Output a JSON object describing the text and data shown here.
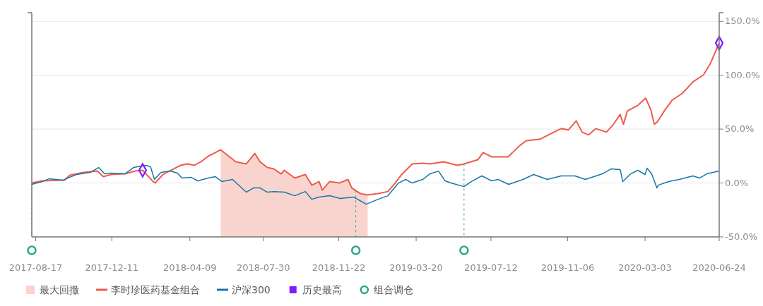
{
  "chart_data": {
    "type": "line",
    "xlim": [
      "2017-08-11",
      "2020-06-24"
    ],
    "xticks": [
      "2017-08-17",
      "2017-12-11",
      "2018-04-09",
      "2018-07-30",
      "2018-11-22",
      "2019-03-20",
      "2019-07-12",
      "2019-11-06",
      "2020-03-03",
      "2020-06-24"
    ],
    "ylim": [
      -50,
      158
    ],
    "yticks": [
      {
        "value": 150,
        "label": "150.0%"
      },
      {
        "value": 100,
        "label": "100.0%"
      },
      {
        "value": 50,
        "label": "50.0%"
      },
      {
        "value": 0,
        "label": "0.0%"
      },
      {
        "value": -50,
        "label": "-50.0%"
      }
    ],
    "grid": "y",
    "legend": "bottom",
    "series": [
      {
        "name": "最大回撤",
        "type": "area",
        "color": "#f9d4cf",
        "x": [
          "2018-05-26",
          "2018-05-26",
          "2018-06-18",
          "2018-07-04",
          "2018-07-17",
          "2018-07-25",
          "2018-08-05",
          "2018-08-15",
          "2018-08-26",
          "2018-08-31",
          "2018-09-16",
          "2018-10-02",
          "2018-10-12",
          "2018-10-23",
          "2018-10-28",
          "2018-11-08",
          "2018-11-23",
          "2018-12-06",
          "2018-12-12",
          "2018-12-25",
          "2019-01-05",
          "2019-01-05"
        ],
        "values": [
          -50,
          30.8,
          19.7,
          17.7,
          27.5,
          19.7,
          14.4,
          13.1,
          8.5,
          11.8,
          4.6,
          7.9,
          -2.0,
          1.3,
          -6.6,
          1.3,
          0,
          3.3,
          -4.6,
          -9.8,
          -11.1,
          -50
        ]
      },
      {
        "name": "李时珍医药基金组合",
        "color": "#f05b4a",
        "x": [
          "2017-08-11",
          "2017-08-27",
          "2017-09-30",
          "2017-10-08",
          "2017-10-29",
          "2017-11-19",
          "2017-11-28",
          "2017-12-10",
          "2017-12-31",
          "2018-01-16",
          "2018-01-27",
          "2018-02-12",
          "2018-02-15",
          "2018-02-27",
          "2018-03-15",
          "2018-03-26",
          "2018-04-05",
          "2018-04-16",
          "2018-04-26",
          "2018-05-07",
          "2018-05-18",
          "2018-05-26",
          "2018-06-18",
          "2018-07-04",
          "2018-07-17",
          "2018-07-25",
          "2018-08-05",
          "2018-08-15",
          "2018-08-26",
          "2018-08-31",
          "2018-09-16",
          "2018-10-02",
          "2018-10-12",
          "2018-10-23",
          "2018-10-28",
          "2018-11-08",
          "2018-11-23",
          "2018-12-06",
          "2018-12-12",
          "2018-12-25",
          "2019-01-05",
          "2019-01-21",
          "2019-02-05",
          "2019-02-16",
          "2019-02-26",
          "2019-03-14",
          "2019-03-30",
          "2019-04-10",
          "2019-05-01",
          "2019-05-22",
          "2019-06-01",
          "2019-06-22",
          "2019-06-30",
          "2019-07-13",
          "2019-07-23",
          "2019-08-07",
          "2019-08-25",
          "2019-09-04",
          "2019-09-25",
          "2019-10-16",
          "2019-10-27",
          "2019-11-07",
          "2019-11-19",
          "2019-11-28",
          "2019-12-08",
          "2019-12-19",
          "2020-01-04",
          "2020-01-14",
          "2020-01-25",
          "2020-01-30",
          "2020-02-05",
          "2020-02-21",
          "2020-03-04",
          "2020-03-12",
          "2020-03-17",
          "2020-03-22",
          "2020-04-02",
          "2020-04-13",
          "2020-04-29",
          "2020-05-15",
          "2020-05-31",
          "2020-06-10",
          "2020-06-24"
        ],
        "values": [
          0,
          2.0,
          2.6,
          7.2,
          9.8,
          11.1,
          5.9,
          7.9,
          8.5,
          11.1,
          11.8,
          1.3,
          0,
          7.9,
          13.1,
          16.4,
          17.7,
          16.4,
          19.7,
          24.9,
          28.2,
          30.8,
          19.7,
          17.7,
          27.5,
          19.7,
          14.4,
          13.1,
          8.5,
          11.8,
          4.6,
          7.9,
          -2.0,
          1.3,
          -6.6,
          1.3,
          0,
          3.3,
          -4.6,
          -9.8,
          -11.1,
          -9.8,
          -7.9,
          0,
          7.9,
          17.7,
          18.4,
          17.7,
          19.7,
          16.4,
          17.7,
          21.6,
          28.2,
          24.3,
          24.3,
          24.3,
          34.8,
          39.3,
          40.7,
          47.2,
          50.5,
          49.2,
          57.7,
          47.2,
          44.6,
          50.5,
          47.2,
          53.8,
          63.6,
          54.4,
          66.9,
          72.1,
          78.7,
          67.5,
          54.4,
          57.0,
          67.5,
          76.7,
          83.3,
          93.8,
          100.3,
          110.2,
          129.8
        ]
      },
      {
        "name": "沪深300",
        "color": "#1777a8",
        "x": [
          "2017-08-11",
          "2017-08-27",
          "2017-09-06",
          "2017-09-27",
          "2017-10-18",
          "2017-11-08",
          "2017-11-21",
          "2017-11-30",
          "2017-12-10",
          "2017-12-31",
          "2018-01-13",
          "2018-02-01",
          "2018-02-08",
          "2018-02-14",
          "2018-02-24",
          "2018-03-10",
          "2018-03-21",
          "2018-03-28",
          "2018-04-11",
          "2018-04-21",
          "2018-05-07",
          "2018-05-18",
          "2018-05-28",
          "2018-06-13",
          "2018-07-04",
          "2018-07-15",
          "2018-07-25",
          "2018-08-05",
          "2018-08-15",
          "2018-08-31",
          "2018-09-16",
          "2018-10-02",
          "2018-10-12",
          "2018-10-23",
          "2018-11-08",
          "2018-11-24",
          "2018-12-15",
          "2019-01-03",
          "2019-01-21",
          "2019-02-05",
          "2019-02-21",
          "2019-03-04",
          "2019-03-14",
          "2019-03-30",
          "2019-04-10",
          "2019-04-23",
          "2019-05-03",
          "2019-05-12",
          "2019-06-01",
          "2019-06-12",
          "2019-06-28",
          "2019-07-13",
          "2019-07-23",
          "2019-08-08",
          "2019-08-30",
          "2019-09-15",
          "2019-10-06",
          "2019-10-27",
          "2019-11-17",
          "2019-12-03",
          "2019-12-29",
          "2020-01-11",
          "2020-01-25",
          "2020-01-29",
          "2020-02-10",
          "2020-02-21",
          "2020-03-03",
          "2020-03-06",
          "2020-03-13",
          "2020-03-21",
          "2020-03-23",
          "2020-04-08",
          "2020-04-24",
          "2020-05-15",
          "2020-05-25",
          "2020-06-05",
          "2020-06-24"
        ],
        "values": [
          -1.3,
          1.3,
          3.9,
          2.6,
          7.9,
          9.8,
          14.4,
          8.5,
          9.2,
          8.5,
          14.4,
          16.4,
          15.1,
          3.3,
          9.8,
          11.1,
          9.2,
          4.6,
          5.2,
          2.0,
          4.6,
          5.9,
          1.3,
          3.3,
          -8.5,
          -4.6,
          -4.6,
          -8.5,
          -7.9,
          -8.5,
          -11.8,
          -7.9,
          -15.1,
          -13.1,
          -11.8,
          -14.4,
          -13.1,
          -19.7,
          -15.1,
          -11.8,
          0,
          3.3,
          0,
          3.3,
          8.5,
          11.1,
          2.0,
          0,
          -3.3,
          1.3,
          6.6,
          2.0,
          3.3,
          -1.3,
          3.3,
          7.9,
          3.3,
          6.6,
          6.6,
          3.3,
          8.5,
          13.1,
          12.5,
          1.3,
          8.5,
          11.8,
          7.9,
          13.8,
          8.5,
          -4.6,
          -2.0,
          1.3,
          3.3,
          6.6,
          4.6,
          8.5,
          11.1
        ]
      },
      {
        "name": "历史最高",
        "type": "scatter",
        "marker": "diamond",
        "color": "#7b1fff",
        "x": [
          "2018-01-27",
          "2020-06-24"
        ],
        "values": [
          11.8,
          129.8
        ]
      }
    ],
    "ref_lines": [
      {
        "axis": "x",
        "value": "2017-08-11",
        "label": "组合调仓",
        "color": "#27a98c",
        "line_style": "dashed"
      },
      {
        "axis": "x",
        "value": "2018-12-18",
        "color": "#27a98c",
        "line_style": "dashed"
      },
      {
        "axis": "x",
        "value": "2019-06-01",
        "color": "#27a98c",
        "line_style": "dashed"
      }
    ]
  }
}
